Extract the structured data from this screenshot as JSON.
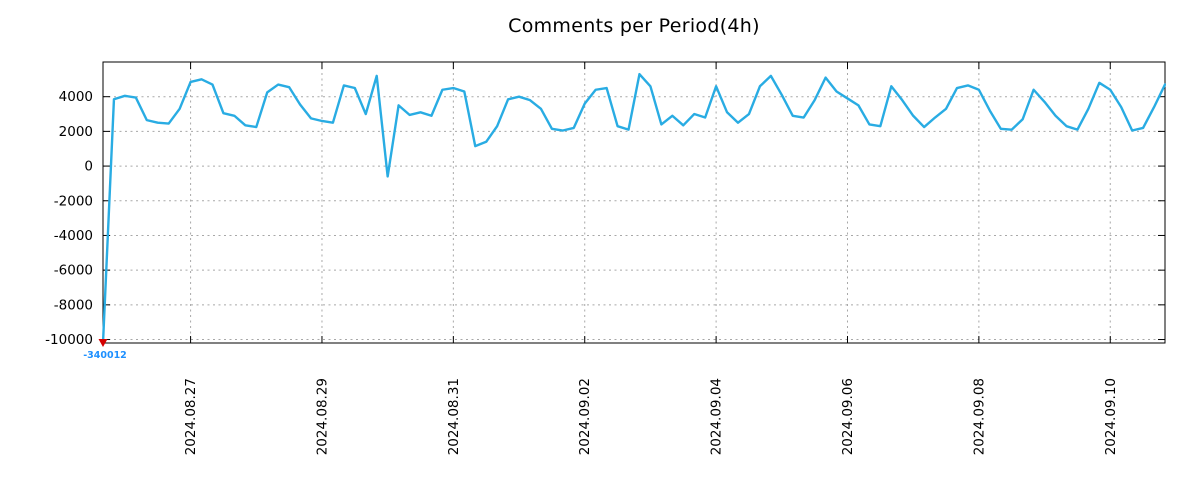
{
  "chart_data": {
    "type": "line",
    "title": "Comments per Period(4h)",
    "xlabel": "",
    "ylabel": "",
    "grid": true,
    "legend": "none",
    "line_color": "#29ace3",
    "x_period_hours": 4,
    "x_tick_labels": [
      "2024.08.27",
      "2024.08.29",
      "2024.08.31",
      "2024.09.02",
      "2024.09.04",
      "2024.09.06",
      "2024.09.08",
      "2024.09.10"
    ],
    "x_tick_indices": [
      8,
      20,
      32,
      44,
      56,
      68,
      80,
      92
    ],
    "yticks": [
      4000,
      2000,
      0,
      -2000,
      -4000,
      -6000,
      -8000,
      -10000
    ],
    "ylim": [
      -10200,
      6000
    ],
    "values": [
      -340012,
      3850,
      4050,
      3950,
      2650,
      2500,
      2450,
      3300,
      4850,
      5000,
      4700,
      3050,
      2900,
      2350,
      2250,
      4250,
      4700,
      4550,
      3550,
      2750,
      2600,
      2500,
      4650,
      4500,
      3000,
      5200,
      -600,
      3500,
      2950,
      3100,
      2900,
      4400,
      4500,
      4300,
      1150,
      1400,
      2300,
      3850,
      4000,
      3800,
      3300,
      2150,
      2050,
      2200,
      3600,
      4400,
      4500,
      2300,
      2100,
      5300,
      4600,
      2400,
      2900,
      2350,
      3000,
      2800,
      4600,
      3100,
      2500,
      3000,
      4600,
      5200,
      4100,
      2900,
      2800,
      3800,
      5100,
      4300,
      3900,
      3500,
      2400,
      2300,
      4600,
      3800,
      2900,
      2250,
      2800,
      3300,
      4500,
      4650,
      4400,
      3200,
      2150,
      2100,
      2700,
      4400,
      3700,
      2900,
      2300,
      2100,
      3300,
      4800,
      4400,
      3400,
      2050,
      2200,
      3400,
      4700
    ],
    "outlier": {
      "index": 0,
      "value": -340012,
      "label": "-340012",
      "marker": "down-triangle",
      "marker_color": "#d40000",
      "label_color": "#1e90ff"
    }
  }
}
